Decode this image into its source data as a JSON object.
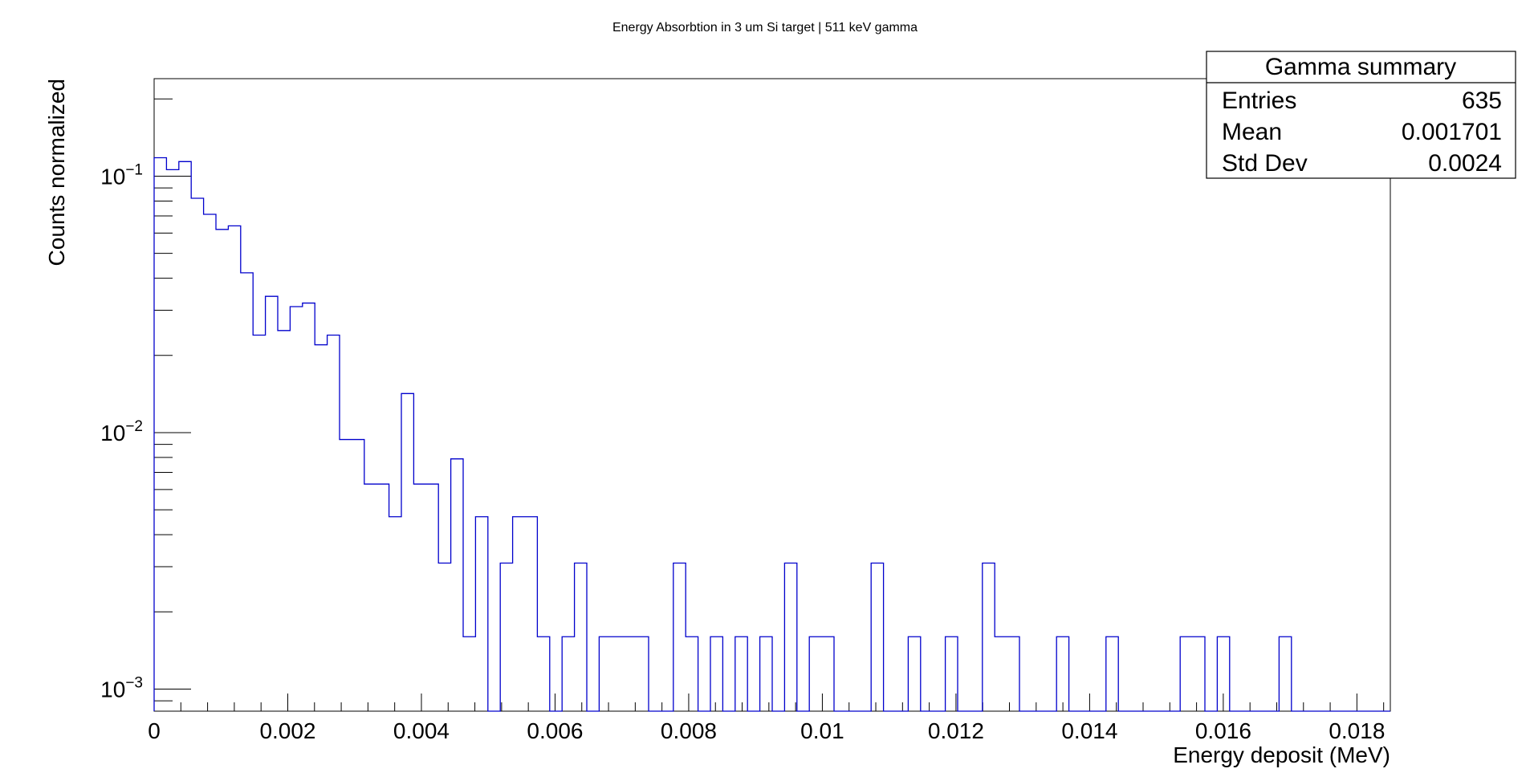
{
  "chart_data": {
    "type": "histogram",
    "title": "Energy Absorbtion in 3 um Si target | 511 keV gamma",
    "xlabel": "Energy deposit (MeV)",
    "ylabel": "Counts normalized",
    "xlim": [
      0,
      0.0185
    ],
    "ylim": [
      0.00082,
      0.24
    ],
    "yscale": "log",
    "bin_width": 0.000185,
    "x_ticks": [
      "0",
      "0.002",
      "0.004",
      "0.006",
      "0.008",
      "0.01",
      "0.012",
      "0.014",
      "0.016",
      "0.018"
    ],
    "y_ticks": [
      {
        "base": "10",
        "exp": "−1"
      },
      {
        "base": "10",
        "exp": "−2"
      },
      {
        "base": "10",
        "exp": "−3"
      }
    ],
    "line_color": "#0000cc",
    "series": [
      {
        "values": [
          0.118,
          0.106,
          0.114,
          0.082,
          0.071,
          0.062,
          0.064,
          0.042,
          0.024,
          0.034,
          0.025,
          0.031,
          0.032,
          0.022,
          0.024,
          0.0094,
          0.0094,
          0.0063,
          0.0063,
          0.0047,
          0.0142,
          0.0063,
          0.0063,
          0.0031,
          0.0079,
          0.0016,
          0.0047,
          0,
          0.0031,
          0.0047,
          0.0047,
          0.0016,
          0,
          0.0016,
          0.0031,
          0,
          0.0016,
          0.0016,
          0.0016,
          0.0016,
          0,
          0,
          0.0031,
          0.0016,
          0,
          0.0016,
          0,
          0.0016,
          0,
          0.0016,
          0,
          0.0031,
          0,
          0.0016,
          0.0016,
          0,
          0,
          0,
          0.0031,
          0,
          0,
          0.0016,
          0,
          0,
          0.0016,
          0,
          0,
          0.0031,
          0.0016,
          0.0016,
          0,
          0,
          0,
          0.0016,
          0,
          0,
          0,
          0.0016,
          0,
          0,
          0,
          0,
          0,
          0.0016,
          0.0016,
          0,
          0.0016,
          0,
          0,
          0,
          0,
          0.0016,
          0,
          0,
          0,
          0,
          0,
          0,
          0,
          0
        ]
      }
    ]
  },
  "stats_box": {
    "title": "Gamma summary",
    "rows": [
      {
        "label": "Entries",
        "value": "635"
      },
      {
        "label": "Mean",
        "value": "0.001701"
      },
      {
        "label": "Std Dev",
        "value": "0.0024"
      }
    ]
  }
}
